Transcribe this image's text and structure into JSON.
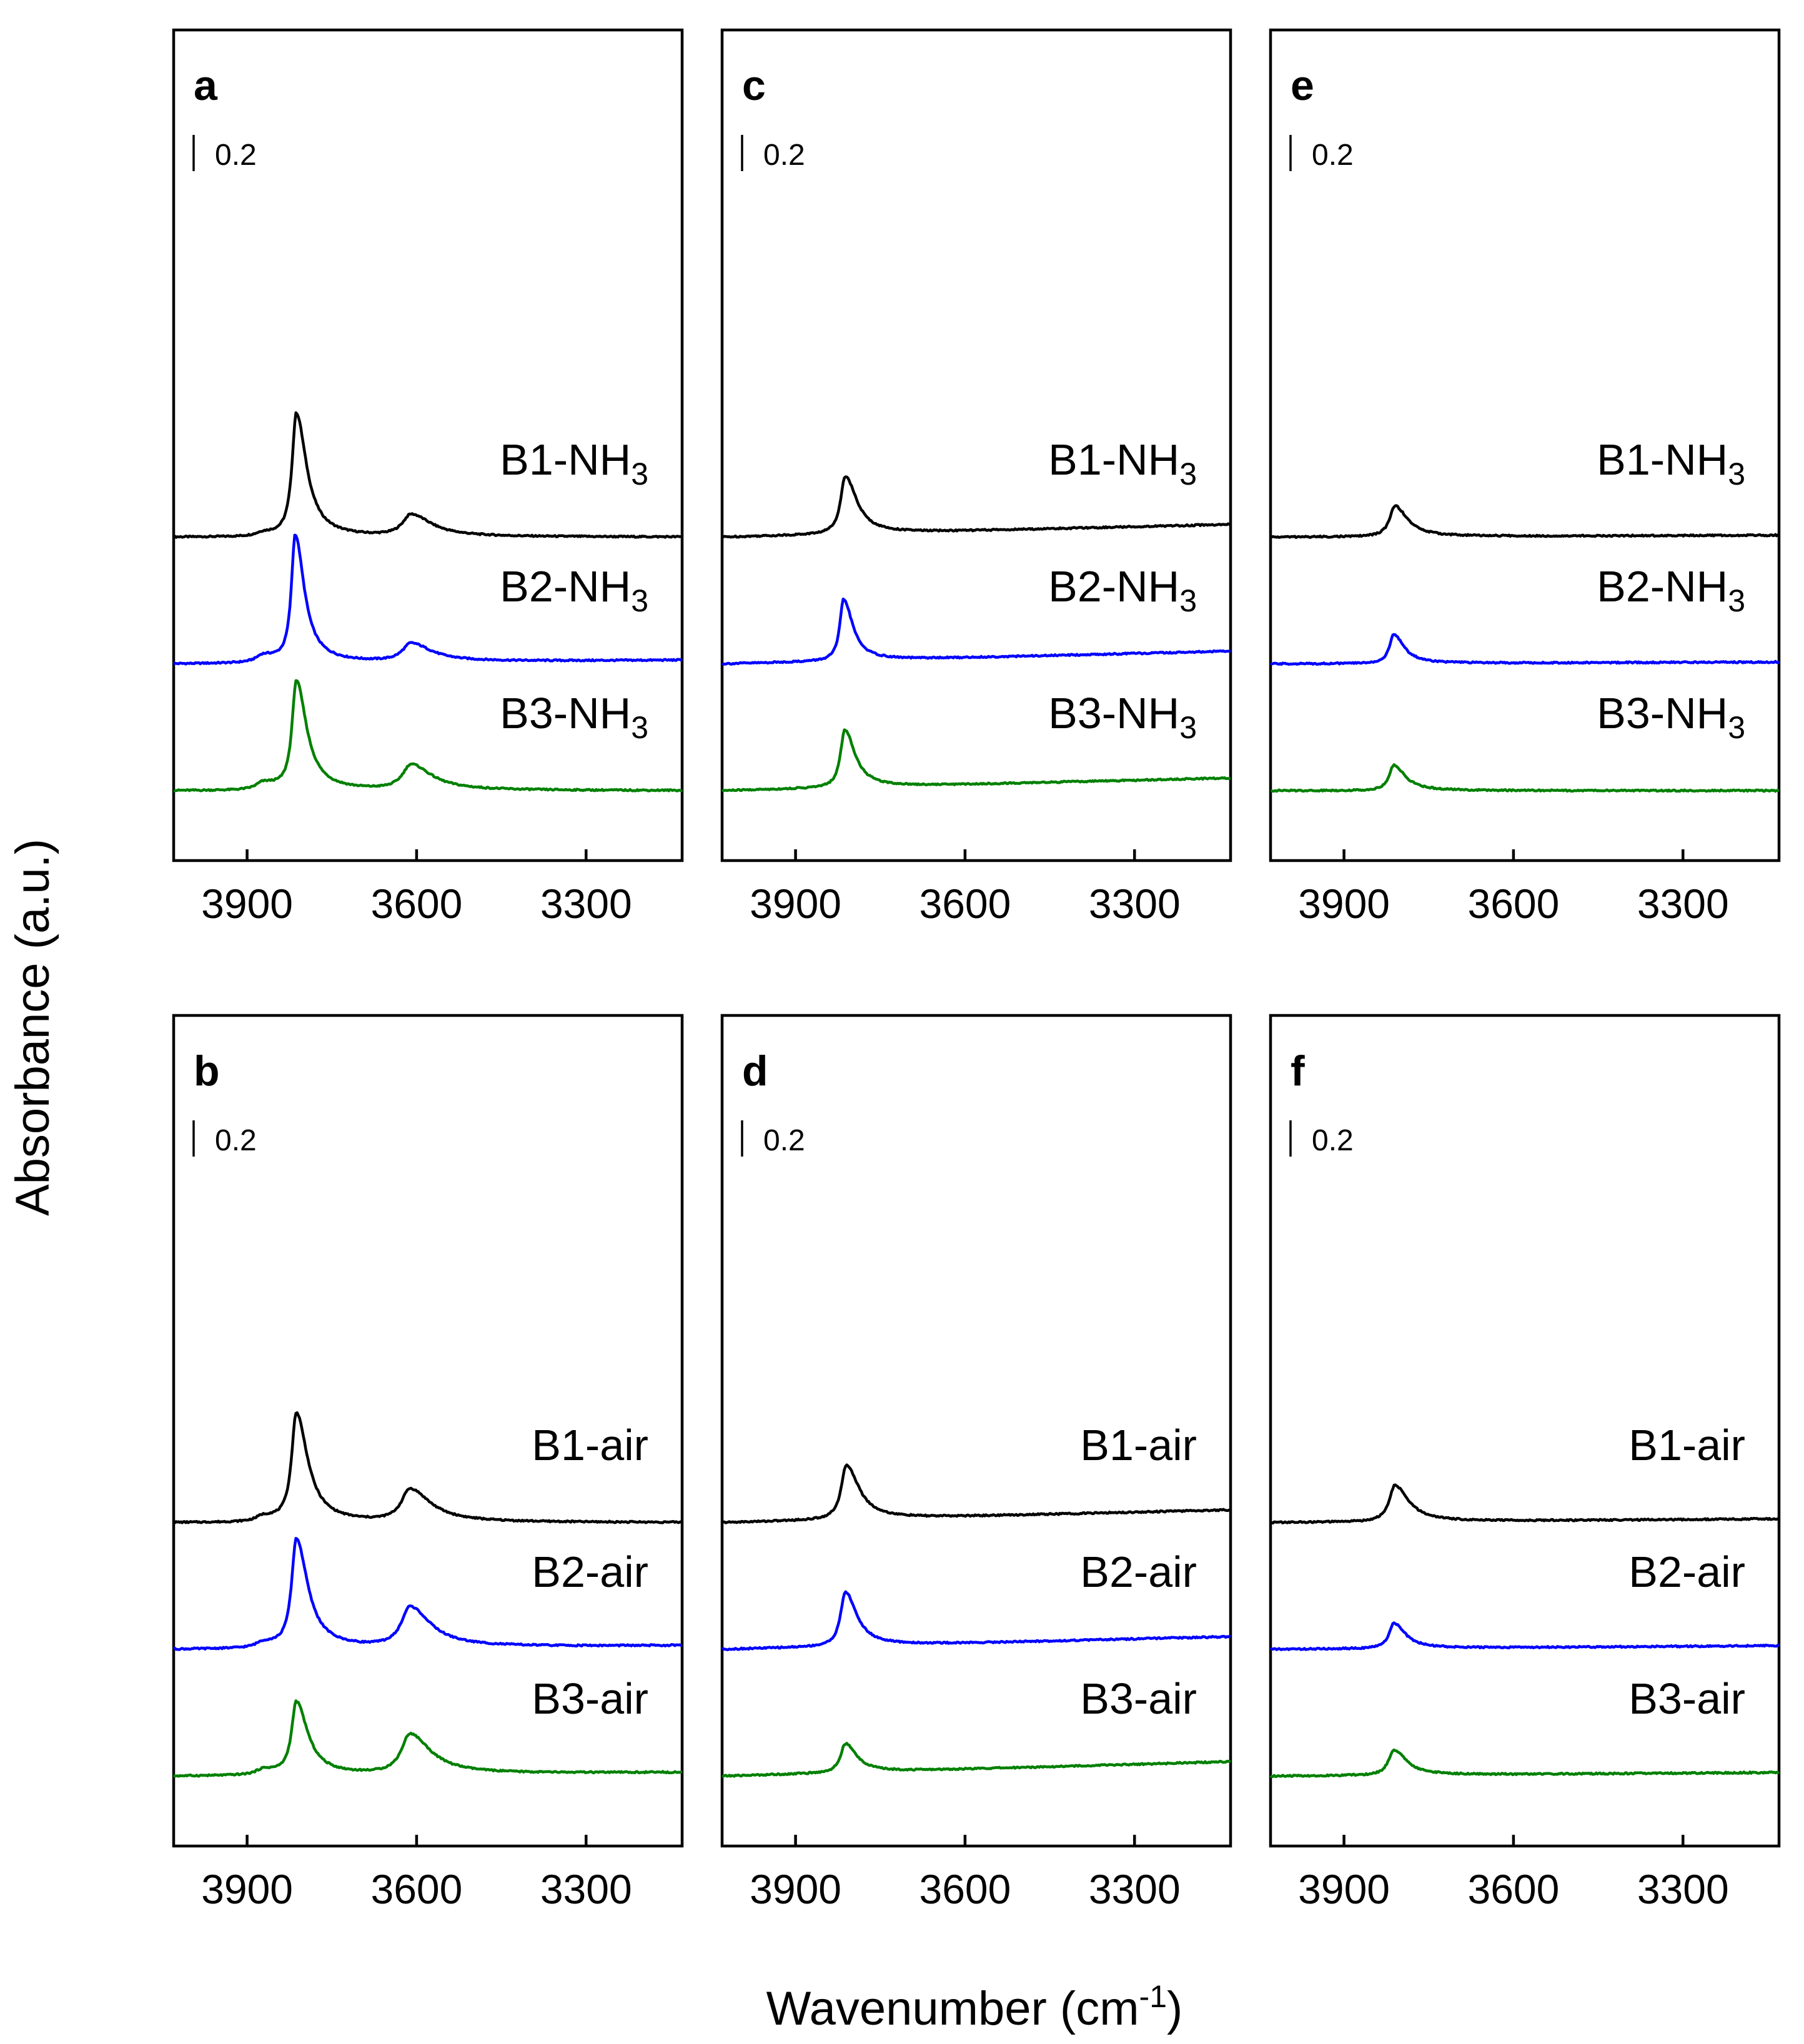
{
  "chart_data": [
    {
      "type": "line",
      "panel": "a",
      "xlim": [
        4030,
        3130
      ],
      "x_ticks": [
        3900,
        3600,
        3300
      ],
      "scale_bar_label": "0.2",
      "series": [
        {
          "name": "B1-NH3",
          "label_main": "B1-NH",
          "label_sub": "3",
          "color": "#000000",
          "offset": 1.4,
          "baseline_start": 0.0,
          "baseline_end": 0.0,
          "peaks": [
            {
              "x": 3872,
              "h": 0.02,
              "w": 14
            },
            {
              "x": 3813,
              "h": 0.68,
              "w": 9
            },
            {
              "x": 3610,
              "h": 0.12,
              "w": 18
            }
          ]
        },
        {
          "name": "B2-NH3",
          "label_main": "B2-NH",
          "label_sub": "3",
          "color": "#0000ff",
          "offset": 0.7,
          "baseline_start": 0.0,
          "baseline_end": 0.02,
          "peaks": [
            {
              "x": 3872,
              "h": 0.04,
              "w": 14
            },
            {
              "x": 3815,
              "h": 0.7,
              "w": 8
            },
            {
              "x": 3610,
              "h": 0.1,
              "w": 18
            }
          ]
        },
        {
          "name": "B3-NH3",
          "label_main": "B3-NH",
          "label_sub": "3",
          "color": "#008000",
          "offset": 0.0,
          "baseline_start": 0.0,
          "baseline_end": 0.0,
          "peaks": [
            {
              "x": 3872,
              "h": 0.04,
              "w": 14
            },
            {
              "x": 3813,
              "h": 0.6,
              "w": 9
            },
            {
              "x": 3610,
              "h": 0.14,
              "w": 18
            }
          ]
        }
      ]
    },
    {
      "type": "line",
      "panel": "b",
      "xlim": [
        4030,
        3130
      ],
      "x_ticks": [
        3900,
        3600,
        3300
      ],
      "scale_bar_label": "0.2",
      "series": [
        {
          "name": "B1-air",
          "label_main": "B1-air",
          "label_sub": "",
          "color": "#000000",
          "offset": 1.4,
          "baseline_start": 0.0,
          "baseline_end": 0.0,
          "peaks": [
            {
              "x": 3872,
              "h": 0.03,
              "w": 14
            },
            {
              "x": 3813,
              "h": 0.6,
              "w": 10
            },
            {
              "x": 3612,
              "h": 0.18,
              "w": 18
            }
          ]
        },
        {
          "name": "B2-air",
          "label_main": "B2-air",
          "label_sub": "",
          "color": "#0000ff",
          "offset": 0.7,
          "baseline_start": 0.0,
          "baseline_end": 0.02,
          "peaks": [
            {
              "x": 3872,
              "h": 0.03,
              "w": 14
            },
            {
              "x": 3813,
              "h": 0.6,
              "w": 10
            },
            {
              "x": 3612,
              "h": 0.22,
              "w": 18
            }
          ]
        },
        {
          "name": "B3-air",
          "label_main": "B3-air",
          "label_sub": "",
          "color": "#008000",
          "offset": 0.0,
          "baseline_start": 0.0,
          "baseline_end": 0.02,
          "peaks": [
            {
              "x": 3872,
              "h": 0.03,
              "w": 14
            },
            {
              "x": 3813,
              "h": 0.4,
              "w": 10
            },
            {
              "x": 3612,
              "h": 0.22,
              "w": 18
            }
          ]
        }
      ]
    },
    {
      "type": "line",
      "panel": "c",
      "xlim": [
        4030,
        3130
      ],
      "x_ticks": [
        3900,
        3600,
        3300
      ],
      "scale_bar_label": "0.2",
      "series": [
        {
          "name": "B1-NH3",
          "label_main": "B1-NH",
          "label_sub": "3",
          "color": "#000000",
          "offset": 1.4,
          "baseline_start": 0.0,
          "baseline_end": 0.07,
          "peaks": [
            {
              "x": 3812,
              "h": 0.32,
              "w": 10
            }
          ]
        },
        {
          "name": "B2-NH3",
          "label_main": "B2-NH",
          "label_sub": "3",
          "color": "#0000ff",
          "offset": 0.7,
          "baseline_start": 0.0,
          "baseline_end": 0.07,
          "peaks": [
            {
              "x": 3815,
              "h": 0.34,
              "w": 8
            }
          ]
        },
        {
          "name": "B3-NH3",
          "label_main": "B3-NH",
          "label_sub": "3",
          "color": "#008000",
          "offset": 0.0,
          "baseline_start": 0.0,
          "baseline_end": 0.07,
          "peaks": [
            {
              "x": 3813,
              "h": 0.32,
              "w": 9
            }
          ]
        }
      ]
    },
    {
      "type": "line",
      "panel": "d",
      "xlim": [
        4030,
        3130
      ],
      "x_ticks": [
        3900,
        3600,
        3300
      ],
      "scale_bar_label": "0.2",
      "series": [
        {
          "name": "B1-air",
          "label_main": "B1-air",
          "label_sub": "",
          "color": "#000000",
          "offset": 1.4,
          "baseline_start": 0.0,
          "baseline_end": 0.07,
          "peaks": [
            {
              "x": 3810,
              "h": 0.3,
              "w": 11
            }
          ]
        },
        {
          "name": "B2-air",
          "label_main": "B2-air",
          "label_sub": "",
          "color": "#0000ff",
          "offset": 0.7,
          "baseline_start": 0.0,
          "baseline_end": 0.07,
          "peaks": [
            {
              "x": 3812,
              "h": 0.3,
              "w": 10
            }
          ]
        },
        {
          "name": "B3-air",
          "label_main": "B3-air",
          "label_sub": "",
          "color": "#008000",
          "offset": 0.0,
          "baseline_start": 0.0,
          "baseline_end": 0.08,
          "peaks": [
            {
              "x": 3812,
              "h": 0.16,
              "w": 10
            }
          ]
        }
      ]
    },
    {
      "type": "line",
      "panel": "e",
      "xlim": [
        4030,
        3130
      ],
      "x_ticks": [
        3900,
        3600,
        3300
      ],
      "scale_bar_label": "0.2",
      "series": [
        {
          "name": "B1-NH3",
          "label_main": "B1-NH",
          "label_sub": "3",
          "color": "#000000",
          "offset": 1.4,
          "baseline_start": 0.0,
          "baseline_end": 0.01,
          "peaks": [
            {
              "x": 3810,
              "h": 0.17,
              "w": 11
            }
          ]
        },
        {
          "name": "B2-NH3",
          "label_main": "B2-NH",
          "label_sub": "3",
          "color": "#0000ff",
          "offset": 0.7,
          "baseline_start": 0.0,
          "baseline_end": 0.01,
          "peaks": [
            {
              "x": 3812,
              "h": 0.16,
              "w": 9
            }
          ]
        },
        {
          "name": "B3-NH3",
          "label_main": "B3-NH",
          "label_sub": "3",
          "color": "#008000",
          "offset": 0.0,
          "baseline_start": 0.0,
          "baseline_end": 0.0,
          "peaks": [
            {
              "x": 3812,
              "h": 0.14,
              "w": 10
            }
          ]
        }
      ]
    },
    {
      "type": "line",
      "panel": "f",
      "xlim": [
        4030,
        3130
      ],
      "x_ticks": [
        3900,
        3600,
        3300
      ],
      "scale_bar_label": "0.2",
      "series": [
        {
          "name": "B1-air",
          "label_main": "B1-air",
          "label_sub": "",
          "color": "#000000",
          "offset": 1.4,
          "baseline_start": 0.0,
          "baseline_end": 0.02,
          "peaks": [
            {
              "x": 3810,
              "h": 0.2,
              "w": 12
            }
          ]
        },
        {
          "name": "B2-air",
          "label_main": "B2-air",
          "label_sub": "",
          "color": "#0000ff",
          "offset": 0.7,
          "baseline_start": 0.0,
          "baseline_end": 0.02,
          "peaks": [
            {
              "x": 3812,
              "h": 0.14,
              "w": 10
            }
          ]
        },
        {
          "name": "B3-air",
          "label_main": "B3-air",
          "label_sub": "",
          "color": "#008000",
          "offset": 0.0,
          "baseline_start": 0.0,
          "baseline_end": 0.02,
          "peaks": [
            {
              "x": 3812,
              "h": 0.14,
              "w": 11
            }
          ]
        }
      ]
    }
  ],
  "y_axis_title": "Absorbance (a.u.)",
  "x_axis_title_main": "Wavenumber (cm",
  "x_axis_title_sup": "-1",
  "x_axis_title_close": ")"
}
